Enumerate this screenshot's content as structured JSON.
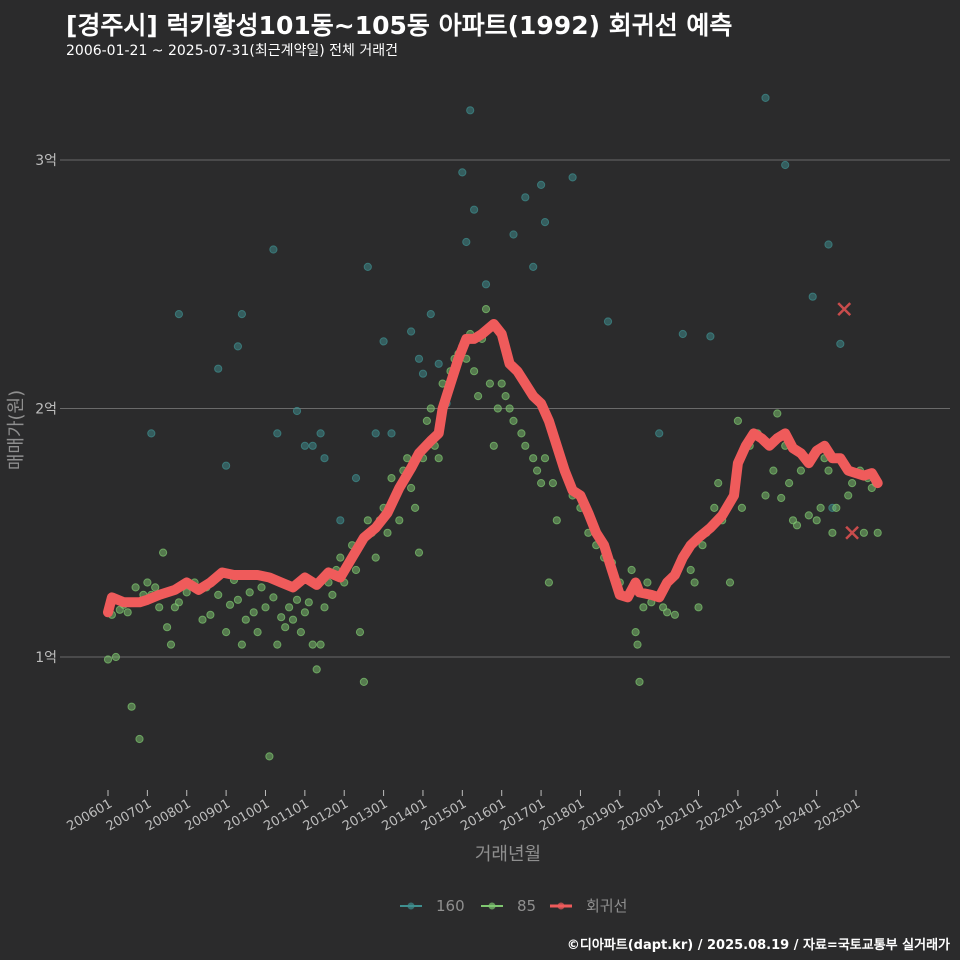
{
  "title": "[경주시] 럭키황성101동~105동 아파트(1992) 회귀선 예측",
  "subtitle": "2006-01-21 ~ 2025-07-31(최근계약일) 전체 거래건",
  "footer": "©디아파트(dapt.kr) / 2025.08.19 / 자료=국토교통부 실거래가",
  "colors": {
    "s160": "#3f8f8f",
    "s85": "#7fc770",
    "regression": "#ef5b5b",
    "outlier": "#c94c4c"
  },
  "chart_data": {
    "type": "scatter",
    "title": "[경주시] 럭키황성101동~105동 아파트(1992) 회귀선 예측",
    "xlabel": "거래년월",
    "ylabel": "매매가(원)",
    "ylim": [
      0.5,
      3.5
    ],
    "yticks": [
      {
        "value": 1,
        "label": "1억"
      },
      {
        "value": 2,
        "label": "2억"
      },
      {
        "value": 3,
        "label": "3억"
      }
    ],
    "xlim": [
      2005.6,
      2025.9
    ],
    "xticks": [
      "200601",
      "200701",
      "200801",
      "200901",
      "201001",
      "201101",
      "201201",
      "201301",
      "201401",
      "201501",
      "201601",
      "201701",
      "201801",
      "201901",
      "202001",
      "202101",
      "202201",
      "202301",
      "202401",
      "202501"
    ],
    "legend": [
      {
        "name": "160"
      },
      {
        "name": "85"
      },
      {
        "name": "회귀선"
      }
    ],
    "series": [
      {
        "name": "160",
        "points": [
          [
            2007.1,
            1.9
          ],
          [
            2007.8,
            2.38
          ],
          [
            2008.8,
            2.16
          ],
          [
            2009.0,
            1.77
          ],
          [
            2009.3,
            2.25
          ],
          [
            2009.4,
            2.38
          ],
          [
            2010.2,
            2.64
          ],
          [
            2010.3,
            1.9
          ],
          [
            2010.8,
            1.99
          ],
          [
            2011.0,
            1.85
          ],
          [
            2011.2,
            1.85
          ],
          [
            2011.4,
            1.9
          ],
          [
            2011.5,
            1.8
          ],
          [
            2011.9,
            1.55
          ],
          [
            2012.3,
            1.72
          ],
          [
            2012.6,
            2.57
          ],
          [
            2012.8,
            1.9
          ],
          [
            2013.0,
            2.27
          ],
          [
            2013.2,
            1.9
          ],
          [
            2013.7,
            2.31
          ],
          [
            2013.9,
            2.2
          ],
          [
            2014.0,
            2.14
          ],
          [
            2014.2,
            2.38
          ],
          [
            2014.4,
            2.18
          ],
          [
            2014.6,
            2.02
          ],
          [
            2015.0,
            2.95
          ],
          [
            2015.1,
            2.67
          ],
          [
            2015.2,
            3.2
          ],
          [
            2015.3,
            2.8
          ],
          [
            2015.6,
            2.5
          ],
          [
            2016.3,
            2.7
          ],
          [
            2016.6,
            2.85
          ],
          [
            2016.8,
            2.57
          ],
          [
            2017.0,
            2.9
          ],
          [
            2017.1,
            2.75
          ],
          [
            2017.8,
            2.93
          ],
          [
            2018.7,
            2.35
          ],
          [
            2020.0,
            1.9
          ],
          [
            2020.6,
            2.3
          ],
          [
            2021.3,
            2.29
          ],
          [
            2022.7,
            3.25
          ],
          [
            2023.2,
            2.98
          ],
          [
            2023.9,
            2.45
          ],
          [
            2024.3,
            2.66
          ],
          [
            2024.6,
            2.26
          ],
          [
            2024.4,
            1.6
          ]
        ]
      },
      {
        "name": "85",
        "points": [
          [
            2006.0,
            0.99
          ],
          [
            2006.1,
            1.17
          ],
          [
            2006.2,
            1.0
          ],
          [
            2006.3,
            1.19
          ],
          [
            2006.4,
            1.21
          ],
          [
            2006.5,
            1.18
          ],
          [
            2006.6,
            0.8
          ],
          [
            2006.7,
            1.28
          ],
          [
            2006.8,
            0.67
          ],
          [
            2006.9,
            1.25
          ],
          [
            2007.0,
            1.3
          ],
          [
            2007.1,
            1.25
          ],
          [
            2007.2,
            1.28
          ],
          [
            2007.3,
            1.2
          ],
          [
            2007.4,
            1.42
          ],
          [
            2007.5,
            1.12
          ],
          [
            2007.6,
            1.05
          ],
          [
            2007.7,
            1.2
          ],
          [
            2007.8,
            1.22
          ],
          [
            2008.0,
            1.26
          ],
          [
            2008.2,
            1.3
          ],
          [
            2008.4,
            1.15
          ],
          [
            2008.5,
            1.28
          ],
          [
            2008.6,
            1.17
          ],
          [
            2008.8,
            1.25
          ],
          [
            2009.0,
            1.1
          ],
          [
            2009.1,
            1.21
          ],
          [
            2009.2,
            1.31
          ],
          [
            2009.3,
            1.23
          ],
          [
            2009.4,
            1.05
          ],
          [
            2009.5,
            1.15
          ],
          [
            2009.6,
            1.26
          ],
          [
            2009.7,
            1.18
          ],
          [
            2009.8,
            1.1
          ],
          [
            2009.9,
            1.28
          ],
          [
            2010.0,
            1.2
          ],
          [
            2010.1,
            0.6
          ],
          [
            2010.2,
            1.24
          ],
          [
            2010.3,
            1.05
          ],
          [
            2010.4,
            1.16
          ],
          [
            2010.5,
            1.12
          ],
          [
            2010.6,
            1.2
          ],
          [
            2010.7,
            1.15
          ],
          [
            2010.8,
            1.23
          ],
          [
            2010.9,
            1.1
          ],
          [
            2011.0,
            1.18
          ],
          [
            2011.1,
            1.22
          ],
          [
            2011.2,
            1.05
          ],
          [
            2011.3,
            0.95
          ],
          [
            2011.4,
            1.05
          ],
          [
            2011.5,
            1.2
          ],
          [
            2011.6,
            1.3
          ],
          [
            2011.7,
            1.25
          ],
          [
            2011.8,
            1.35
          ],
          [
            2011.9,
            1.4
          ],
          [
            2012.0,
            1.3
          ],
          [
            2012.2,
            1.45
          ],
          [
            2012.3,
            1.35
          ],
          [
            2012.4,
            1.1
          ],
          [
            2012.5,
            0.9
          ],
          [
            2012.6,
            1.55
          ],
          [
            2012.7,
            1.5
          ],
          [
            2012.8,
            1.4
          ],
          [
            2012.9,
            1.55
          ],
          [
            2013.0,
            1.6
          ],
          [
            2013.1,
            1.5
          ],
          [
            2013.2,
            1.72
          ],
          [
            2013.3,
            1.65
          ],
          [
            2013.4,
            1.55
          ],
          [
            2013.5,
            1.75
          ],
          [
            2013.6,
            1.8
          ],
          [
            2013.7,
            1.68
          ],
          [
            2013.8,
            1.6
          ],
          [
            2013.9,
            1.42
          ],
          [
            2014.0,
            1.8
          ],
          [
            2014.1,
            1.95
          ],
          [
            2014.2,
            2.0
          ],
          [
            2014.3,
            1.85
          ],
          [
            2014.4,
            1.8
          ],
          [
            2014.5,
            2.1
          ],
          [
            2014.6,
            2.05
          ],
          [
            2014.7,
            2.15
          ],
          [
            2014.8,
            2.2
          ],
          [
            2014.9,
            2.22
          ],
          [
            2015.0,
            2.25
          ],
          [
            2015.1,
            2.2
          ],
          [
            2015.2,
            2.3
          ],
          [
            2015.3,
            2.15
          ],
          [
            2015.4,
            2.05
          ],
          [
            2015.5,
            2.28
          ],
          [
            2015.6,
            2.4
          ],
          [
            2015.7,
            2.1
          ],
          [
            2015.8,
            1.85
          ],
          [
            2015.9,
            2.0
          ],
          [
            2016.0,
            2.1
          ],
          [
            2016.1,
            2.05
          ],
          [
            2016.2,
            2.0
          ],
          [
            2016.3,
            1.95
          ],
          [
            2016.5,
            1.9
          ],
          [
            2016.6,
            1.85
          ],
          [
            2016.8,
            1.8
          ],
          [
            2016.9,
            1.75
          ],
          [
            2017.0,
            1.7
          ],
          [
            2017.1,
            1.8
          ],
          [
            2017.2,
            1.3
          ],
          [
            2017.3,
            1.7
          ],
          [
            2017.4,
            1.55
          ],
          [
            2017.6,
            1.75
          ],
          [
            2017.8,
            1.65
          ],
          [
            2018.0,
            1.6
          ],
          [
            2018.2,
            1.5
          ],
          [
            2018.4,
            1.45
          ],
          [
            2018.6,
            1.4
          ],
          [
            2018.8,
            1.38
          ],
          [
            2019.0,
            1.3
          ],
          [
            2019.2,
            1.25
          ],
          [
            2019.3,
            1.35
          ],
          [
            2019.4,
            1.1
          ],
          [
            2019.45,
            1.05
          ],
          [
            2019.5,
            0.9
          ],
          [
            2019.6,
            1.2
          ],
          [
            2019.7,
            1.3
          ],
          [
            2019.8,
            1.22
          ],
          [
            2020.0,
            1.25
          ],
          [
            2020.1,
            1.2
          ],
          [
            2020.2,
            1.18
          ],
          [
            2020.4,
            1.17
          ],
          [
            2020.6,
            1.4
          ],
          [
            2020.8,
            1.35
          ],
          [
            2020.9,
            1.3
          ],
          [
            2021.0,
            1.2
          ],
          [
            2021.1,
            1.45
          ],
          [
            2021.2,
            1.5
          ],
          [
            2021.4,
            1.6
          ],
          [
            2021.5,
            1.7
          ],
          [
            2021.6,
            1.55
          ],
          [
            2021.8,
            1.3
          ],
          [
            2022.0,
            1.95
          ],
          [
            2022.1,
            1.6
          ],
          [
            2022.3,
            1.85
          ],
          [
            2022.5,
            1.9
          ],
          [
            2022.7,
            1.65
          ],
          [
            2022.9,
            1.75
          ],
          [
            2023.0,
            1.98
          ],
          [
            2023.1,
            1.64
          ],
          [
            2023.2,
            1.85
          ],
          [
            2023.3,
            1.7
          ],
          [
            2023.4,
            1.55
          ],
          [
            2023.5,
            1.53
          ],
          [
            2023.6,
            1.75
          ],
          [
            2023.8,
            1.57
          ],
          [
            2024.0,
            1.55
          ],
          [
            2024.1,
            1.6
          ],
          [
            2024.2,
            1.8
          ],
          [
            2024.3,
            1.75
          ],
          [
            2024.4,
            1.5
          ],
          [
            2024.5,
            1.6
          ],
          [
            2024.6,
            1.8
          ],
          [
            2024.7,
            1.78
          ],
          [
            2024.8,
            1.65
          ],
          [
            2024.9,
            1.7
          ],
          [
            2025.1,
            1.75
          ],
          [
            2025.2,
            1.5
          ],
          [
            2025.3,
            1.72
          ],
          [
            2025.4,
            1.68
          ],
          [
            2025.5,
            1.7
          ],
          [
            2025.55,
            1.5
          ]
        ]
      },
      {
        "name": "회귀선",
        "points": [
          [
            2006.0,
            1.18
          ],
          [
            2006.1,
            1.24
          ],
          [
            2006.4,
            1.22
          ],
          [
            2006.8,
            1.22
          ],
          [
            2007.0,
            1.23
          ],
          [
            2007.3,
            1.25
          ],
          [
            2007.7,
            1.27
          ],
          [
            2008.0,
            1.3
          ],
          [
            2008.3,
            1.27
          ],
          [
            2008.6,
            1.3
          ],
          [
            2008.9,
            1.34
          ],
          [
            2009.2,
            1.33
          ],
          [
            2009.5,
            1.33
          ],
          [
            2009.8,
            1.33
          ],
          [
            2010.1,
            1.32
          ],
          [
            2010.4,
            1.3
          ],
          [
            2010.7,
            1.28
          ],
          [
            2011.0,
            1.32
          ],
          [
            2011.3,
            1.29
          ],
          [
            2011.6,
            1.34
          ],
          [
            2011.9,
            1.32
          ],
          [
            2012.2,
            1.4
          ],
          [
            2012.5,
            1.48
          ],
          [
            2012.8,
            1.52
          ],
          [
            2013.1,
            1.58
          ],
          [
            2013.4,
            1.68
          ],
          [
            2013.7,
            1.76
          ],
          [
            2013.9,
            1.82
          ],
          [
            2014.2,
            1.87
          ],
          [
            2014.4,
            1.9
          ],
          [
            2014.5,
            2.0
          ],
          [
            2014.7,
            2.1
          ],
          [
            2014.9,
            2.2
          ],
          [
            2015.1,
            2.28
          ],
          [
            2015.3,
            2.28
          ],
          [
            2015.5,
            2.3
          ],
          [
            2015.8,
            2.34
          ],
          [
            2016.0,
            2.3
          ],
          [
            2016.2,
            2.18
          ],
          [
            2016.4,
            2.15
          ],
          [
            2016.6,
            2.1
          ],
          [
            2016.8,
            2.05
          ],
          [
            2017.0,
            2.02
          ],
          [
            2017.2,
            1.95
          ],
          [
            2017.4,
            1.85
          ],
          [
            2017.6,
            1.75
          ],
          [
            2017.8,
            1.67
          ],
          [
            2018.0,
            1.65
          ],
          [
            2018.2,
            1.58
          ],
          [
            2018.4,
            1.5
          ],
          [
            2018.6,
            1.45
          ],
          [
            2018.8,
            1.35
          ],
          [
            2019.0,
            1.25
          ],
          [
            2019.2,
            1.24
          ],
          [
            2019.4,
            1.3
          ],
          [
            2019.5,
            1.26
          ],
          [
            2019.8,
            1.25
          ],
          [
            2020.0,
            1.24
          ],
          [
            2020.2,
            1.3
          ],
          [
            2020.4,
            1.33
          ],
          [
            2020.6,
            1.4
          ],
          [
            2020.8,
            1.45
          ],
          [
            2021.0,
            1.48
          ],
          [
            2021.3,
            1.52
          ],
          [
            2021.6,
            1.57
          ],
          [
            2021.9,
            1.65
          ],
          [
            2022.0,
            1.78
          ],
          [
            2022.2,
            1.85
          ],
          [
            2022.4,
            1.9
          ],
          [
            2022.6,
            1.88
          ],
          [
            2022.8,
            1.85
          ],
          [
            2023.0,
            1.88
          ],
          [
            2023.2,
            1.9
          ],
          [
            2023.4,
            1.84
          ],
          [
            2023.6,
            1.82
          ],
          [
            2023.8,
            1.78
          ],
          [
            2024.0,
            1.83
          ],
          [
            2024.2,
            1.85
          ],
          [
            2024.4,
            1.8
          ],
          [
            2024.6,
            1.8
          ],
          [
            2024.8,
            1.75
          ],
          [
            2025.0,
            1.74
          ],
          [
            2025.2,
            1.73
          ],
          [
            2025.4,
            1.74
          ],
          [
            2025.55,
            1.7
          ]
        ]
      }
    ],
    "outliers": [
      [
        2024.7,
        2.4
      ],
      [
        2024.9,
        1.5
      ]
    ]
  }
}
